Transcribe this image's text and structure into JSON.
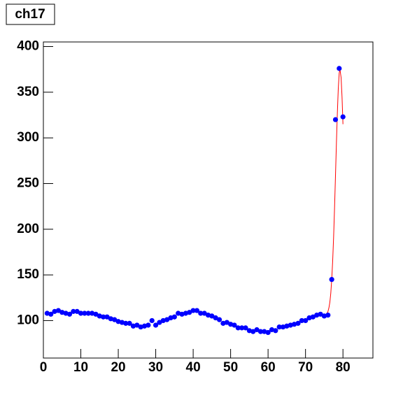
{
  "chart_data": {
    "type": "scatter",
    "title": "ch17",
    "x": [
      1,
      2,
      3,
      4,
      5,
      6,
      7,
      8,
      9,
      10,
      11,
      12,
      13,
      14,
      15,
      16,
      17,
      18,
      19,
      20,
      21,
      22,
      23,
      24,
      25,
      26,
      27,
      28,
      29,
      30,
      31,
      32,
      33,
      34,
      35,
      36,
      37,
      38,
      39,
      40,
      41,
      42,
      43,
      44,
      45,
      46,
      47,
      48,
      49,
      50,
      51,
      52,
      53,
      54,
      55,
      56,
      57,
      58,
      59,
      60,
      61,
      62,
      63,
      64,
      65,
      66,
      67,
      68,
      69,
      70,
      71,
      72,
      73,
      74,
      75,
      76,
      77,
      78,
      79,
      80
    ],
    "series": [
      {
        "color": "#0000ff",
        "values": [
          108,
          107,
          110,
          111,
          109,
          108,
          107,
          110,
          110,
          108,
          108,
          108,
          108,
          107,
          105,
          104,
          104,
          102,
          101,
          99,
          98,
          97,
          97,
          94,
          95,
          93,
          94,
          95,
          100,
          95,
          98,
          100,
          101,
          103,
          104,
          108,
          107,
          108,
          109,
          111,
          111,
          108,
          108,
          106,
          105,
          103,
          101,
          97,
          98,
          96,
          95,
          92,
          92,
          92,
          89,
          88,
          90,
          88,
          88,
          87,
          90,
          89,
          93,
          93,
          94,
          95,
          96,
          97,
          100,
          100,
          103,
          104,
          106,
          107,
          105,
          106,
          145,
          320,
          376,
          323
        ]
      }
    ],
    "fit": {
      "color": "#ff0000",
      "x": [
        75.5,
        75.75,
        76,
        76.25,
        76.5,
        76.75,
        77,
        77.25,
        77.5,
        77.75,
        78,
        78.25,
        78.5,
        78.75,
        79,
        79.2,
        79.5,
        79.75,
        80
      ],
      "values": [
        106,
        108,
        110,
        114,
        120,
        130,
        145,
        165,
        191,
        223,
        258,
        294,
        327,
        354,
        371,
        375,
        366,
        345,
        315
      ]
    },
    "xlim": [
      0,
      88
    ],
    "xticks": [
      0,
      10,
      20,
      30,
      40,
      50,
      60,
      70,
      80
    ],
    "ylim": [
      59,
      405
    ],
    "yticks": [
      100,
      150,
      200,
      250,
      300,
      350,
      400
    ]
  }
}
